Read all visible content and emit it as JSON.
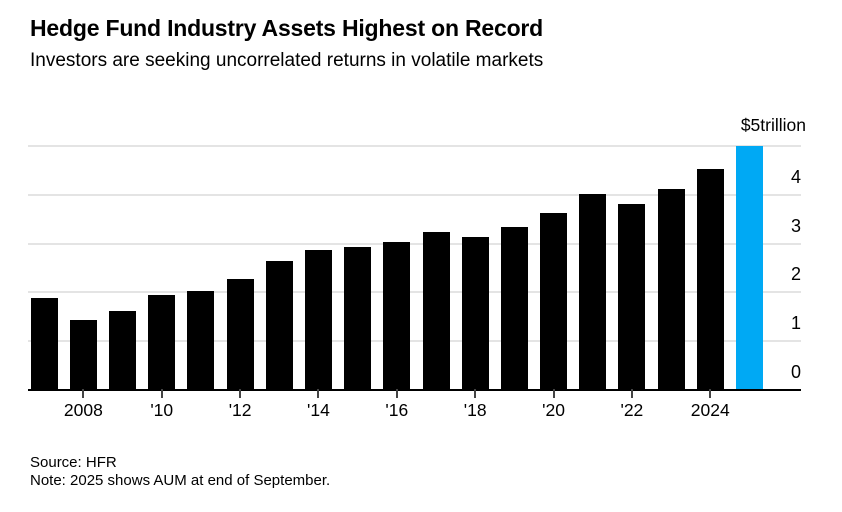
{
  "chart_data": {
    "type": "bar",
    "title": "Hedge Fund Industry Assets Highest on Record",
    "subtitle": "Investors are seeking uncorrelated returns in volatile markets",
    "ylabel_top": "$5trillion",
    "ylim": [
      0,
      5
    ],
    "yticks": [
      0,
      1,
      2,
      3,
      4
    ],
    "grid": true,
    "legend_position": "none",
    "x": [
      2007,
      2008,
      2009,
      2010,
      2011,
      2012,
      2013,
      2014,
      2015,
      2016,
      2017,
      2018,
      2019,
      2020,
      2021,
      2022,
      2023,
      2024,
      2025
    ],
    "values": [
      1.87,
      1.41,
      1.6,
      1.92,
      2.01,
      2.25,
      2.63,
      2.85,
      2.9,
      3.02,
      3.21,
      3.11,
      3.31,
      3.6,
      4.0,
      3.8,
      4.1,
      4.51,
      4.99
    ],
    "highlight_x": 2025,
    "bar_color": "#000000",
    "highlight_color": "#00a9f4",
    "gridline_color": "#e4e4e4",
    "axis_color": "#000000",
    "tick_color": "#444444",
    "xticks": [
      {
        "x": 2008,
        "label": "2008"
      },
      {
        "x": 2010,
        "label": "'10"
      },
      {
        "x": 2012,
        "label": "'12"
      },
      {
        "x": 2014,
        "label": "'14"
      },
      {
        "x": 2016,
        "label": "'16"
      },
      {
        "x": 2018,
        "label": "'18"
      },
      {
        "x": 2020,
        "label": "'20"
      },
      {
        "x": 2022,
        "label": "'22"
      },
      {
        "x": 2024,
        "label": "2024"
      }
    ]
  },
  "footer": {
    "source": "Source: HFR",
    "note": "Note: 2025 shows AUM at end of September."
  }
}
